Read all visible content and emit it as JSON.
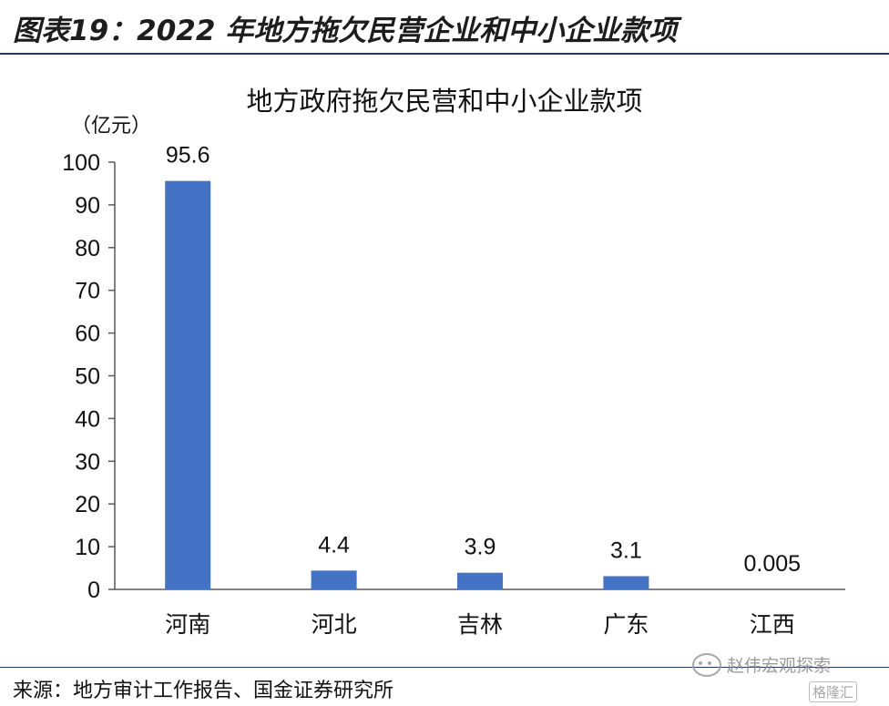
{
  "figure_title": "图表19：2022 年地方拖欠民营企业和中小企业款项",
  "source_note": "来源：地方审计工作报告、国金证券研究所",
  "watermark": "赵伟宏观探索",
  "watermark2": "格隆汇",
  "colors": {
    "bar": "#4472c4",
    "rule": "#1f3864",
    "axis": "#595959"
  },
  "chart_data": {
    "type": "bar",
    "title": "地方政府拖欠民营和中小企业款项",
    "ylabel": "（亿元）",
    "xlabel": "",
    "categories": [
      "河南",
      "河北",
      "吉林",
      "广东",
      "江西"
    ],
    "values": [
      95.6,
      4.4,
      3.9,
      3.1,
      0.005
    ],
    "data_labels": [
      "95.6",
      "4.4",
      "3.9",
      "3.1",
      "0.005"
    ],
    "ylim": [
      0,
      100
    ],
    "yticks": [
      0,
      10,
      20,
      30,
      40,
      50,
      60,
      70,
      80,
      90,
      100
    ],
    "grid": false,
    "legend": "none"
  }
}
